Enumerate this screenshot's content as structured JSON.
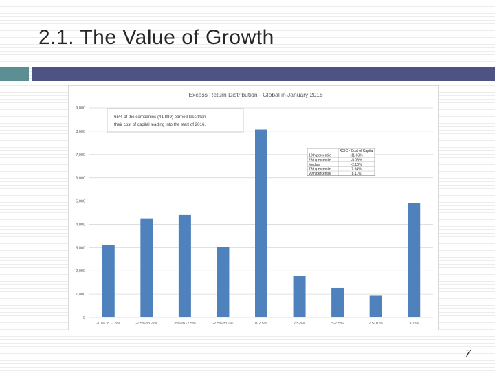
{
  "slide": {
    "title": "2.1. The Value of Growth",
    "page_number": "7"
  },
  "colors": {
    "bar": "#4f81bd",
    "accent_teal": "#5b8f94",
    "accent_purple": "#4e5384"
  },
  "chart_data": {
    "type": "bar",
    "title": "Excess Return Distribution - Global in January 2016",
    "xlabel": "",
    "ylabel": "",
    "ylim": [
      0,
      9000
    ],
    "yticks": [
      0,
      1000,
      2000,
      3000,
      4000,
      5000,
      6000,
      7000,
      8000,
      9000
    ],
    "ytick_labels": [
      "0",
      "1,000",
      "2,000",
      "3,000",
      "4,000",
      "5,000",
      "6,000",
      "7,000",
      "8,000",
      "9,000"
    ],
    "grid": true,
    "categories": [
      "-10% to -7.5%",
      "-7.5% to -5%",
      "-5% to -2.5%",
      "-2.5% to 0%",
      "0-2.5%",
      "2.5-5%",
      "5-7.5%",
      "7.5-10%",
      ">10%"
    ],
    "values": [
      3100,
      4230,
      4400,
      3020,
      8070,
      1770,
      1270,
      930,
      4920
    ],
    "annotation": {
      "lines": [
        "65% of the companies (41,889) earned less than",
        "their cost of capital leading into the start of 2016."
      ]
    },
    "stats_table": {
      "header": [
        "ROIC - Cost of Capital"
      ],
      "rows": [
        {
          "label": "10th percentile",
          "value": "-11.63%"
        },
        {
          "label": "25th percentile",
          "value": "-5.03%"
        },
        {
          "label": "Median",
          "value": "-2.10%"
        },
        {
          "label": "75th percentile",
          "value": "7.64%"
        },
        {
          "label": "90th percentile",
          "value": "8.11%"
        }
      ]
    }
  }
}
